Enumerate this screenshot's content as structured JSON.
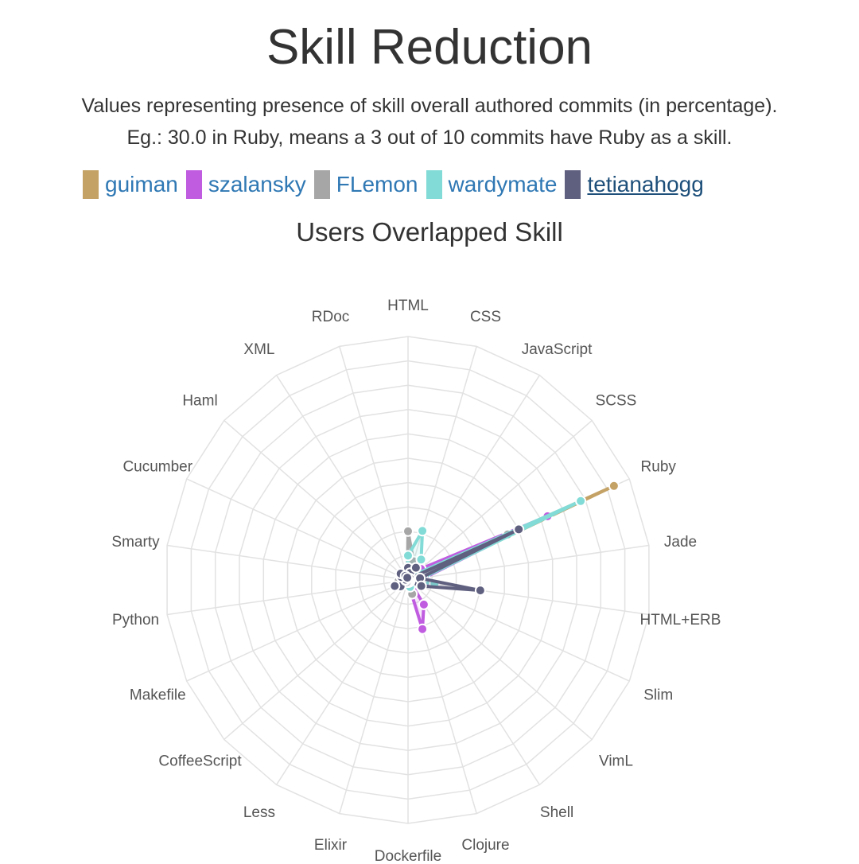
{
  "title": "Skill Reduction",
  "description": [
    "Values representing presence of skill overall authored commits (in percentage).",
    "Eg.: 30.0 in Ruby, means a 3 out of 10 commits have Ruby as a skill."
  ],
  "legend": [
    {
      "name": "guiman",
      "color": "#c4a266"
    },
    {
      "name": "szalansky",
      "color": "#c05ce0"
    },
    {
      "name": "FLemon",
      "color": "#a6a6a6"
    },
    {
      "name": "wardymate",
      "color": "#82dbd6"
    },
    {
      "name": "tetianahogg",
      "color": "#5f5f80"
    }
  ],
  "chart_data": {
    "type": "radar",
    "title": "Users Overlapped Skill",
    "axes": [
      "HTML",
      "CSS",
      "JavaScript",
      "SCSS",
      "Ruby",
      "Jade",
      "HTML+ERB",
      "Slim",
      "VimL",
      "Shell",
      "Clojure",
      "Dockerfile",
      "Elixir",
      "Less",
      "CoffeeScript",
      "Makefile",
      "Python",
      "Smarty",
      "Cucumber",
      "Haml",
      "XML",
      "RDoc"
    ],
    "rlim": [
      0,
      100
    ],
    "rings": 10,
    "grid": true,
    "series": [
      {
        "name": "guiman",
        "values": [
          2,
          1,
          2,
          1,
          93,
          5,
          4,
          1,
          1,
          1,
          2,
          1,
          1,
          1,
          1,
          1,
          1,
          1,
          1,
          1,
          1,
          1
        ]
      },
      {
        "name": "szalansky",
        "values": [
          3,
          2,
          5,
          7,
          63,
          7,
          8,
          1,
          1,
          12,
          21,
          1,
          1,
          1,
          1,
          1,
          1,
          1,
          1,
          1,
          1,
          1
        ]
      },
      {
        "name": "FLemon",
        "values": [
          20,
          8,
          5,
          2,
          45,
          4,
          2,
          2,
          1,
          1,
          6,
          1,
          1,
          1,
          2,
          4,
          4,
          2,
          3,
          2,
          1,
          1
        ]
      },
      {
        "name": "wardymate",
        "values": [
          10,
          21,
          10,
          3,
          78,
          6,
          11,
          1,
          1,
          1,
          3,
          1,
          1,
          1,
          1,
          1,
          1,
          1,
          2,
          3,
          1,
          1
        ]
      },
      {
        "name": "tetianahogg",
        "values": [
          5,
          3,
          6,
          1,
          50,
          5,
          30,
          6,
          1,
          1,
          1,
          1,
          1,
          1,
          4,
          6,
          1,
          1,
          3,
          4,
          2,
          1
        ]
      }
    ]
  }
}
